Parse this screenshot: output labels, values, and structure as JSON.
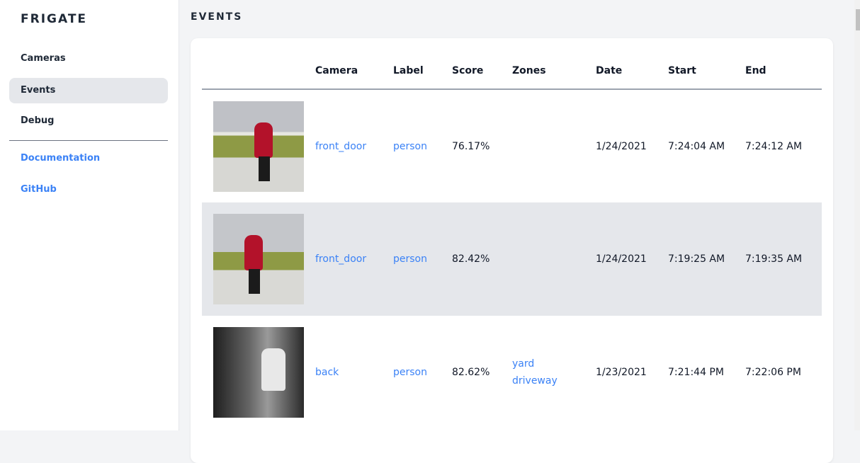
{
  "sidebar": {
    "brand": "FRIGATE",
    "items": [
      {
        "label": "Cameras"
      },
      {
        "label": "Events",
        "active": true
      },
      {
        "label": "Debug"
      }
    ],
    "links": [
      {
        "label": "Documentation"
      },
      {
        "label": "GitHub"
      }
    ]
  },
  "main": {
    "title": "EVENTS",
    "columns": [
      "",
      "Camera",
      "Label",
      "Score",
      "Zones",
      "Date",
      "Start",
      "End"
    ],
    "rows": [
      {
        "camera": "front_door",
        "label": "person",
        "score": "76.17%",
        "zones": [
          "",
          ""
        ],
        "date": "1/24/2021",
        "start": "7:24:04 AM",
        "end": "7:24:12 AM"
      },
      {
        "camera": "front_door",
        "label": "person",
        "score": "82.42%",
        "zones": [
          "",
          ""
        ],
        "date": "1/24/2021",
        "start": "7:19:25 AM",
        "end": "7:19:35 AM"
      },
      {
        "camera": "back",
        "label": "person",
        "score": "82.62%",
        "zones": [
          "yard",
          "driveway"
        ],
        "date": "1/23/2021",
        "start": "7:21:44 PM",
        "end": "7:22:06 PM"
      }
    ]
  },
  "colors": {
    "accent": "#3b82f6",
    "active_bg": "#e5e7eb",
    "alt_row": "#e5e7eb"
  }
}
